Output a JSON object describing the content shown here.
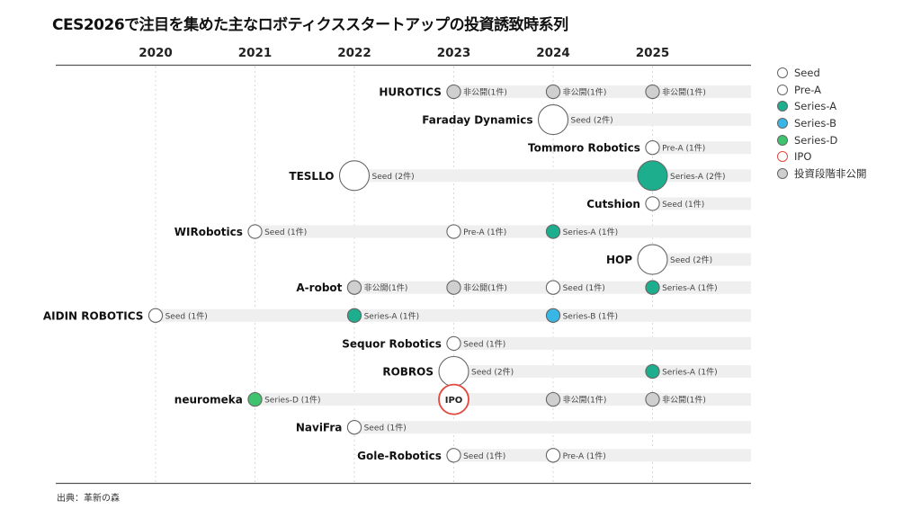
{
  "title": "CES2026で注目を集めた主なロボティクススタートアップの投資誘致時系列",
  "source": "出典：革新の森",
  "colors": {
    "Seed": "#ffffff",
    "Pre-A": "#ffffff",
    "Series-A": "#1dae8d",
    "Series-B": "#38b6e6",
    "Series-D": "#3ec46d",
    "IPO": "#ffffff",
    "Undisclosed": "#cfcfcf"
  },
  "legend": [
    {
      "key": "Seed",
      "label": "Seed"
    },
    {
      "key": "Pre-A",
      "label": "Pre-A"
    },
    {
      "key": "Series-A",
      "label": "Series-A"
    },
    {
      "key": "Series-B",
      "label": "Series-B"
    },
    {
      "key": "Series-D",
      "label": "Series-D"
    },
    {
      "key": "IPO",
      "label": "IPO"
    },
    {
      "key": "Undisclosed",
      "label": "投資段階非公開"
    }
  ],
  "chart_data": {
    "type": "scatter",
    "title": "CES2026で注目を集めた主なロボティクススタートアップの投資誘致時系列",
    "x": [
      2020,
      2021,
      2022,
      2023,
      2024,
      2025
    ],
    "xlabel": "",
    "ylabel": "",
    "grid": true,
    "legend_position": "right",
    "companies": [
      {
        "name": "HUROTICS",
        "events": [
          {
            "year": 2023,
            "stage": "Undisclosed",
            "count": 1,
            "label": "非公開(1件)"
          },
          {
            "year": 2024,
            "stage": "Undisclosed",
            "count": 1,
            "label": "非公開(1件)"
          },
          {
            "year": 2025,
            "stage": "Undisclosed",
            "count": 1,
            "label": "非公開(1件)"
          }
        ]
      },
      {
        "name": "Faraday Dynamics",
        "events": [
          {
            "year": 2024,
            "stage": "Seed",
            "count": 2,
            "label": "Seed (2件)"
          }
        ]
      },
      {
        "name": "Tommoro Robotics",
        "events": [
          {
            "year": 2025,
            "stage": "Pre-A",
            "count": 1,
            "label": "Pre-A (1件)"
          }
        ]
      },
      {
        "name": "TESLLO",
        "events": [
          {
            "year": 2022,
            "stage": "Seed",
            "count": 2,
            "label": "Seed (2件)"
          },
          {
            "year": 2025,
            "stage": "Series-A",
            "count": 2,
            "label": "Series-A (2件)"
          }
        ]
      },
      {
        "name": "Cutshion",
        "events": [
          {
            "year": 2025,
            "stage": "Seed",
            "count": 1,
            "label": "Seed (1件)"
          }
        ]
      },
      {
        "name": "WIRobotics",
        "events": [
          {
            "year": 2021,
            "stage": "Seed",
            "count": 1,
            "label": "Seed (1件)"
          },
          {
            "year": 2023,
            "stage": "Pre-A",
            "count": 1,
            "label": "Pre-A (1件)"
          },
          {
            "year": 2024,
            "stage": "Series-A",
            "count": 1,
            "label": "Series-A (1件)"
          }
        ]
      },
      {
        "name": "HOP",
        "events": [
          {
            "year": 2025,
            "stage": "Seed",
            "count": 2,
            "label": "Seed (2件)"
          }
        ]
      },
      {
        "name": "A-robot",
        "events": [
          {
            "year": 2022,
            "stage": "Undisclosed",
            "count": 1,
            "label": "非公開(1件)"
          },
          {
            "year": 2023,
            "stage": "Undisclosed",
            "count": 1,
            "label": "非公開(1件)"
          },
          {
            "year": 2024,
            "stage": "Seed",
            "count": 1,
            "label": "Seed (1件)"
          },
          {
            "year": 2025,
            "stage": "Series-A",
            "count": 1,
            "label": "Series-A (1件)"
          }
        ]
      },
      {
        "name": "AIDIN ROBOTICS",
        "events": [
          {
            "year": 2020,
            "stage": "Seed",
            "count": 1,
            "label": "Seed (1件)"
          },
          {
            "year": 2022,
            "stage": "Series-A",
            "count": 1,
            "label": "Series-A (1件)"
          },
          {
            "year": 2024,
            "stage": "Series-B",
            "count": 1,
            "label": "Series-B (1件)"
          }
        ]
      },
      {
        "name": "Sequor Robotics",
        "events": [
          {
            "year": 2023,
            "stage": "Seed",
            "count": 1,
            "label": "Seed (1件)"
          }
        ]
      },
      {
        "name": "ROBROS",
        "events": [
          {
            "year": 2023,
            "stage": "Seed",
            "count": 2,
            "label": "Seed (2件)"
          },
          {
            "year": 2025,
            "stage": "Series-A",
            "count": 1,
            "label": "Series-A (1件)"
          }
        ]
      },
      {
        "name": "neuromeka",
        "events": [
          {
            "year": 2021,
            "stage": "Series-D",
            "count": 1,
            "label": "Series-D (1件)"
          },
          {
            "year": 2023,
            "stage": "IPO",
            "count": 2,
            "label": "IPO"
          },
          {
            "year": 2024,
            "stage": "Undisclosed",
            "count": 1,
            "label": "非公開(1件)"
          },
          {
            "year": 2025,
            "stage": "Undisclosed",
            "count": 1,
            "label": "非公開(1件)"
          }
        ]
      },
      {
        "name": "NaviFra",
        "events": [
          {
            "year": 2022,
            "stage": "Seed",
            "count": 1,
            "label": "Seed (1件)"
          }
        ]
      },
      {
        "name": "Gole-Robotics",
        "events": [
          {
            "year": 2023,
            "stage": "Seed",
            "count": 1,
            "label": "Seed (1件)"
          },
          {
            "year": 2024,
            "stage": "Pre-A",
            "count": 1,
            "label": "Pre-A (1件)"
          }
        ]
      }
    ]
  }
}
